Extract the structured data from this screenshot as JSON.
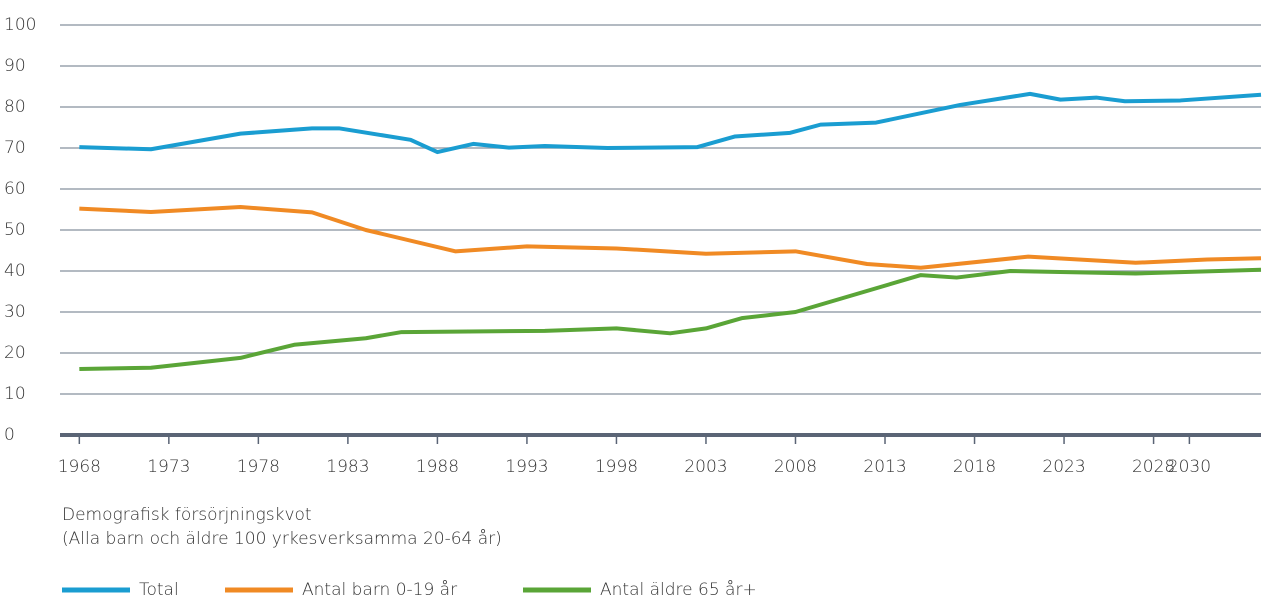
{
  "chart_data": {
    "type": "line",
    "notes": [
      "Demografisk försörjningskvot",
      "(Alla barn och äldre 100 yrkesverksamma 20-64 år)"
    ],
    "xlim": [
      1967.2,
      2034
    ],
    "xticks": [
      1968,
      1973,
      1978,
      1983,
      1988,
      1993,
      1998,
      2003,
      2008,
      2013,
      2018,
      2023,
      2028,
      2030
    ],
    "ylim": [
      0,
      100
    ],
    "yticks": [
      0,
      10,
      20,
      30,
      40,
      50,
      60,
      70,
      80,
      90,
      100
    ],
    "grid": true,
    "legend": "bottom",
    "series": [
      {
        "name": "Total",
        "color": "#1a9dd1",
        "x": [
          1968,
          1972,
          1977,
          1981,
          1982.5,
          1986.5,
          1988,
          1990,
          1992,
          1994,
          1997.5,
          2002.5,
          2004.6,
          2007.7,
          2009.4,
          2012.5,
          2017.2,
          2021.1,
          2022.8,
          2024.8,
          2026.4,
          2029.5,
          2034
        ],
        "values": [
          70.2,
          69.7,
          73.5,
          74.8,
          74.8,
          72,
          69,
          71,
          70.1,
          70.5,
          70,
          70.2,
          72.8,
          73.7,
          75.7,
          76.2,
          80.5,
          83.2,
          81.8,
          82.3,
          81.4,
          81.6,
          83
        ]
      },
      {
        "name": "Antal barn 0-19 år",
        "color": "#f08a24",
        "x": [
          1968,
          1972,
          1977,
          1981,
          1984,
          1989,
          1993,
          1998,
          2003,
          2008,
          2012,
          2015,
          2021,
          2027,
          2031,
          2034
        ],
        "values": [
          55.2,
          54.4,
          55.6,
          54.3,
          50,
          44.8,
          46,
          45.5,
          44.2,
          44.8,
          41.7,
          40.8,
          43.5,
          42,
          42.8,
          43.1
        ]
      },
      {
        "name": "Antal äldre 65 år+",
        "color": "#5aa537",
        "x": [
          1968,
          1972,
          1977,
          1980,
          1984,
          1986,
          1994,
          1998,
          2001,
          2003,
          2005,
          2008,
          2015,
          2017,
          2020,
          2027,
          2034
        ],
        "values": [
          16.1,
          16.4,
          18.8,
          22,
          23.6,
          25.1,
          25.4,
          26,
          24.8,
          26,
          28.5,
          30,
          39,
          38.4,
          40,
          39.4,
          40.3
        ]
      }
    ]
  }
}
